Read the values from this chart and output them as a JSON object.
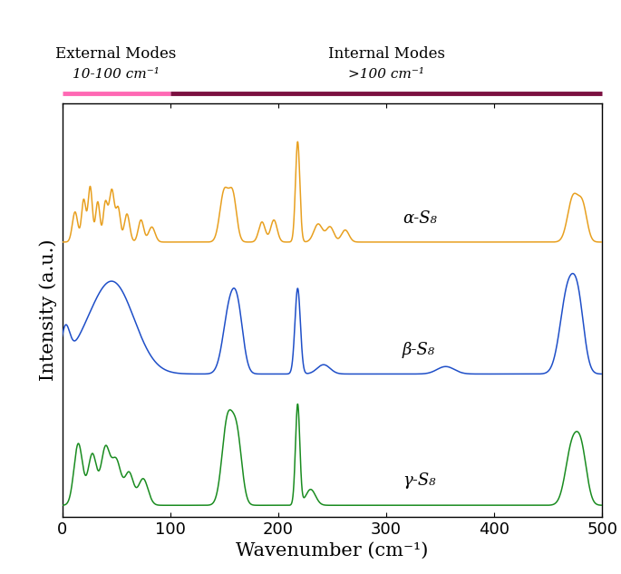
{
  "xlabel": "Wavenumber (cm⁻¹)",
  "ylabel": "Intensity (a.u.)",
  "xlim": [
    0,
    500
  ],
  "alpha_color": "#E8A020",
  "beta_color": "#1F4FC8",
  "gamma_color": "#1A8C20",
  "label_alpha": "α-S₈",
  "label_beta": "β-S₈",
  "label_gamma": "γ-S₈",
  "ext_modes_label": "External Modes",
  "ext_modes_range": "10-100 cm⁻¹",
  "int_modes_label": "Internal Modes",
  "int_modes_range": ">100 cm⁻¹",
  "ext_bar_color": "#FF69B4",
  "int_bar_color": "#7B1040",
  "background_color": "#ffffff",
  "tick_label_size": 13,
  "axis_label_size": 15
}
